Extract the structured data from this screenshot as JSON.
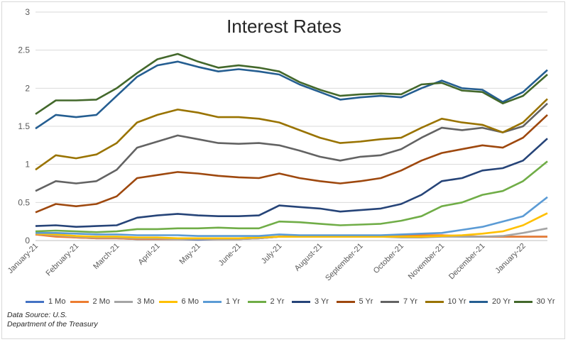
{
  "chart_data": {
    "type": "line",
    "title": "Interest Rates",
    "xlabel": "",
    "ylabel": "",
    "ylim": [
      0,
      3
    ],
    "y_ticks": [
      "0",
      "0.5",
      "1",
      "1.5",
      "2",
      "2.5",
      "3"
    ],
    "x_tick_labels": [
      "January-21",
      "February-21",
      "March-21",
      "April-21",
      "May-21",
      "June-21",
      "July-21",
      "August-21",
      "September-21",
      "October-21",
      "November-21",
      "December-21",
      "January-22"
    ],
    "grid": "horizontal",
    "legend_position": "bottom",
    "x": [
      0,
      0.5,
      1,
      1.5,
      2,
      2.5,
      3,
      3.5,
      4,
      4.5,
      5,
      5.5,
      6,
      6.5,
      7,
      7.5,
      8,
      8.5,
      9,
      9.5,
      10,
      10.5,
      11,
      11.5,
      12,
      12.6
    ],
    "series": [
      {
        "name": "1 Mo",
        "color": "#4472c4",
        "values": [
          0.08,
          0.06,
          0.04,
          0.03,
          0.03,
          0.02,
          0.02,
          0.02,
          0.01,
          0.02,
          0.02,
          0.03,
          0.05,
          0.05,
          0.05,
          0.05,
          0.05,
          0.05,
          0.06,
          0.07,
          0.06,
          0.05,
          0.05,
          0.05,
          0.05,
          0.05
        ]
      },
      {
        "name": "2 Mo",
        "color": "#ed7d31",
        "values": [
          0.08,
          0.05,
          0.04,
          0.03,
          0.03,
          0.02,
          0.02,
          0.02,
          0.02,
          0.02,
          0.02,
          0.03,
          0.05,
          0.05,
          0.05,
          0.05,
          0.05,
          0.05,
          0.06,
          0.07,
          0.07,
          0.06,
          0.05,
          0.05,
          0.05,
          0.05
        ]
      },
      {
        "name": "3 Mo",
        "color": "#a5a5a5",
        "values": [
          0.09,
          0.07,
          0.05,
          0.04,
          0.04,
          0.03,
          0.03,
          0.02,
          0.02,
          0.02,
          0.02,
          0.03,
          0.05,
          0.05,
          0.05,
          0.05,
          0.05,
          0.05,
          0.04,
          0.04,
          0.05,
          0.05,
          0.05,
          0.06,
          0.1,
          0.16
        ]
      },
      {
        "name": "6 Mo",
        "color": "#ffc000",
        "values": [
          0.09,
          0.08,
          0.06,
          0.05,
          0.05,
          0.04,
          0.04,
          0.03,
          0.03,
          0.03,
          0.03,
          0.04,
          0.05,
          0.05,
          0.05,
          0.05,
          0.05,
          0.05,
          0.05,
          0.05,
          0.06,
          0.07,
          0.09,
          0.12,
          0.2,
          0.36
        ]
      },
      {
        "name": "1 Yr",
        "color": "#5b9bd5",
        "values": [
          0.1,
          0.1,
          0.09,
          0.08,
          0.08,
          0.07,
          0.07,
          0.07,
          0.06,
          0.06,
          0.06,
          0.06,
          0.08,
          0.07,
          0.07,
          0.07,
          0.07,
          0.07,
          0.08,
          0.09,
          0.1,
          0.14,
          0.18,
          0.25,
          0.32,
          0.57
        ]
      },
      {
        "name": "2 Yr",
        "color": "#70ad47",
        "values": [
          0.12,
          0.13,
          0.12,
          0.11,
          0.12,
          0.15,
          0.15,
          0.16,
          0.16,
          0.17,
          0.16,
          0.16,
          0.25,
          0.24,
          0.22,
          0.2,
          0.21,
          0.22,
          0.26,
          0.32,
          0.45,
          0.5,
          0.6,
          0.65,
          0.78,
          1.04
        ]
      },
      {
        "name": "3 Yr",
        "color": "#264478",
        "values": [
          0.19,
          0.2,
          0.18,
          0.19,
          0.2,
          0.3,
          0.33,
          0.35,
          0.33,
          0.32,
          0.32,
          0.33,
          0.46,
          0.44,
          0.42,
          0.38,
          0.4,
          0.42,
          0.48,
          0.6,
          0.78,
          0.82,
          0.92,
          0.95,
          1.05,
          1.34
        ]
      },
      {
        "name": "5 Yr",
        "color": "#9e480e",
        "values": [
          0.37,
          0.48,
          0.45,
          0.48,
          0.58,
          0.82,
          0.86,
          0.9,
          0.88,
          0.85,
          0.83,
          0.82,
          0.88,
          0.82,
          0.78,
          0.75,
          0.78,
          0.82,
          0.92,
          1.05,
          1.15,
          1.2,
          1.25,
          1.22,
          1.35,
          1.65
        ]
      },
      {
        "name": "7 Yr",
        "color": "#636363",
        "values": [
          0.65,
          0.78,
          0.75,
          0.78,
          0.93,
          1.22,
          1.3,
          1.38,
          1.33,
          1.28,
          1.27,
          1.28,
          1.25,
          1.18,
          1.1,
          1.05,
          1.1,
          1.12,
          1.2,
          1.35,
          1.48,
          1.45,
          1.48,
          1.42,
          1.5,
          1.8
        ]
      },
      {
        "name": "10 Yr",
        "color": "#997300",
        "values": [
          0.93,
          1.12,
          1.08,
          1.13,
          1.28,
          1.55,
          1.65,
          1.72,
          1.68,
          1.62,
          1.62,
          1.6,
          1.55,
          1.45,
          1.35,
          1.28,
          1.3,
          1.33,
          1.35,
          1.48,
          1.6,
          1.55,
          1.52,
          1.42,
          1.55,
          1.86
        ]
      },
      {
        "name": "20 Yr",
        "color": "#255e91",
        "values": [
          1.47,
          1.65,
          1.62,
          1.65,
          1.9,
          2.15,
          2.3,
          2.35,
          2.28,
          2.22,
          2.25,
          2.22,
          2.18,
          2.05,
          1.95,
          1.85,
          1.88,
          1.9,
          1.88,
          2.0,
          2.1,
          2.0,
          1.98,
          1.82,
          1.95,
          2.24
        ]
      },
      {
        "name": "30 Yr",
        "color": "#43682b",
        "values": [
          1.66,
          1.84,
          1.84,
          1.85,
          2.0,
          2.2,
          2.38,
          2.45,
          2.35,
          2.27,
          2.3,
          2.27,
          2.22,
          2.08,
          1.98,
          1.9,
          1.92,
          1.93,
          1.92,
          2.05,
          2.07,
          1.97,
          1.95,
          1.8,
          1.9,
          2.18
        ]
      }
    ]
  },
  "source": {
    "line1": "Data Source: U.S.",
    "line2": "Department of the Treasury"
  }
}
